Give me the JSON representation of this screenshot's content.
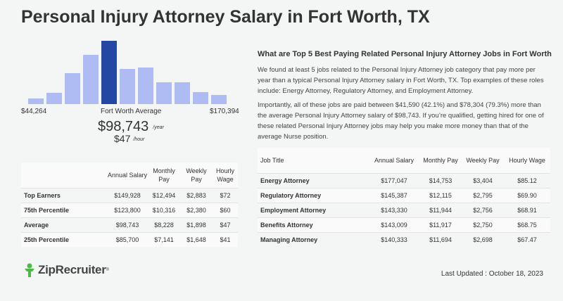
{
  "page": {
    "title": "Personal Injury Attorney Salary in Fort Worth, TX"
  },
  "histogram": {
    "min_label": "$44,264",
    "average_label": "Fort Worth Average",
    "max_label": "$170,394",
    "bar_heights": [
      0.09,
      0.18,
      0.49,
      0.78,
      1.0,
      0.56,
      0.58,
      0.34,
      0.34,
      0.19,
      0.14
    ],
    "highlight_index": 4,
    "bar_color": "#aebcf3",
    "highlight_color": "#2447a4"
  },
  "summary": {
    "yearly": "$98,743",
    "yearly_unit": "/year",
    "hourly": "$47",
    "hourly_unit": "/hour"
  },
  "left_table": {
    "headers": [
      "",
      "Annual Salary",
      "Monthly Pay",
      "Weekly Pay",
      "Hourly Wage"
    ],
    "rows": [
      [
        "Top Earners",
        "$149,928",
        "$12,494",
        "$2,883",
        "$72"
      ],
      [
        "75th Percentile",
        "$123,800",
        "$10,316",
        "$2,380",
        "$60"
      ],
      [
        "Average",
        "$98,743",
        "$8,228",
        "$1,898",
        "$47"
      ],
      [
        "25th Percentile",
        "$85,700",
        "$7,141",
        "$1,648",
        "$41"
      ]
    ]
  },
  "right": {
    "heading": "What are Top 5 Best Paying Related Personal Injury Attorney Jobs in Fort Worth",
    "para1": "We found at least 5 jobs related to the Personal Injury Attorney job category that pay more per year than a typical Personal Injury Attorney salary in Fort Worth, TX. Top examples of these roles include: Energy Attorney, Regulatory Attorney, and Employment Attorney.",
    "para2": "Importantly, all of these jobs are paid between $41,590 (42.1%) and $78,304 (79.3%) more than the average Personal Injury Attorney salary of $98,743. If you’re qualified, getting hired for one of these related Personal Injury Attorney jobs may help you make more money than that of the average Nurse position."
  },
  "right_table": {
    "headers": [
      "Job Title",
      "Annual Salary",
      "Monthly Pay",
      "Weekly Pay",
      "Hourly Wage"
    ],
    "rows": [
      [
        "Energy Attorney",
        "$177,047",
        "$14,753",
        "$3,404",
        "$85.12"
      ],
      [
        "Regulatory Attorney",
        "$145,387",
        "$12,115",
        "$2,795",
        "$69.90"
      ],
      [
        "Employment Attorney",
        "$143,330",
        "$11,944",
        "$2,756",
        "$68.91"
      ],
      [
        "Benefits Attorney",
        "$143,009",
        "$11,917",
        "$2,750",
        "$68.75"
      ],
      [
        "Managing Attorney",
        "$140,333",
        "$11,694",
        "$2,698",
        "$67.47"
      ]
    ]
  },
  "footer": {
    "logo_text": "ZipRecruiter",
    "logo_mark": "®",
    "updated": "Last Updated : October 18, 2023",
    "logo_color": "#4fb848",
    "logo_icon": "person-icon"
  }
}
